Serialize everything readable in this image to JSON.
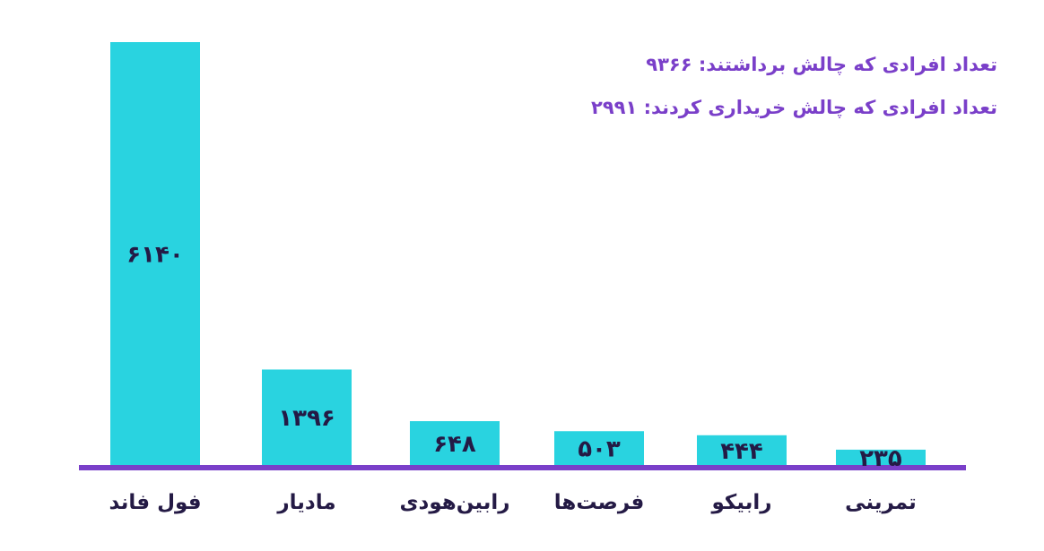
{
  "stats": {
    "started_label": "تعداد افرادی که چالش برداشتند:",
    "started_value": "۹۳۶۶",
    "bought_label": "تعداد افرادی که چالش خریداری کردند:",
    "bought_value": "۲۹۹۱"
  },
  "colors": {
    "bar": "#29d3e0",
    "axis": "#7a3fc9",
    "text": "#241a45",
    "stats_text": "#7a3fc9"
  },
  "chart_data": {
    "type": "bar",
    "title": "",
    "xlabel": "",
    "ylabel": "",
    "categories": [
      "فول فاند",
      "مادیار",
      "رابین‌هودی",
      "فرصت‌ها",
      "رابیکو",
      "تمرینی"
    ],
    "values": [
      6140,
      1396,
      648,
      503,
      444,
      235
    ],
    "value_labels": [
      "۶۱۴۰",
      "۱۳۹۶",
      "۶۴۸",
      "۵۰۳",
      "۴۴۴",
      "۲۳۵"
    ],
    "grid": false,
    "legend": "none"
  }
}
